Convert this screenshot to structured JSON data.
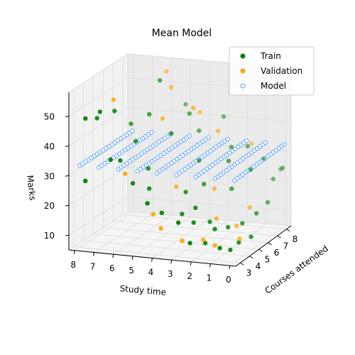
{
  "chart_data": {
    "type": "scatter3d",
    "title": "Mean Model",
    "xlabel": "Study time",
    "ylabel": "Courses attended",
    "zlabel": "Marks",
    "x_ticks": [
      0,
      1,
      2,
      3,
      4,
      5,
      6,
      7,
      8
    ],
    "y_ticks": [
      3,
      4,
      5,
      6,
      7,
      8
    ],
    "z_ticks": [
      10,
      20,
      30,
      40,
      50
    ],
    "xlim": [
      -0.3,
      8.3
    ],
    "ylim": [
      2.5,
      8.5
    ],
    "zlim": [
      5,
      58
    ],
    "legend": {
      "position": "top-right",
      "entries": [
        "Train",
        "Validation",
        "Model"
      ]
    },
    "colors": {
      "train": "#008000",
      "validation": "#ffa500",
      "model": "#5fa8ff"
    },
    "series": [
      {
        "name": "Train",
        "points": [
          [
            7.8,
            3.2,
            48
          ],
          [
            7.5,
            3.8,
            47
          ],
          [
            7.2,
            3.5,
            50
          ],
          [
            6.8,
            4.2,
            49
          ],
          [
            5.6,
            6.5,
            55
          ],
          [
            6.5,
            3.2,
            35
          ],
          [
            6.2,
            3.6,
            34
          ],
          [
            7.6,
            2.8,
            28
          ],
          [
            5.5,
            3.5,
            27
          ],
          [
            4.5,
            3.0,
            22
          ],
          [
            4.0,
            3.5,
            18
          ],
          [
            3.2,
            4.0,
            17
          ],
          [
            3.0,
            3.2,
            16
          ],
          [
            2.5,
            3.8,
            15
          ],
          [
            2.0,
            4.5,
            14
          ],
          [
            1.5,
            4.0,
            13
          ],
          [
            1.2,
            4.8,
            12
          ],
          [
            0.8,
            5.5,
            12
          ],
          [
            0.4,
            6.2,
            14
          ],
          [
            0.2,
            7.0,
            16
          ],
          [
            1.0,
            3.5,
            8
          ],
          [
            0.6,
            3.8,
            7
          ],
          [
            0.5,
            4.5,
            8
          ],
          [
            0.1,
            5.0,
            9
          ],
          [
            2.3,
            3.0,
            10
          ],
          [
            1.8,
            3.6,
            9
          ],
          [
            3.5,
            5.0,
            22
          ],
          [
            2.8,
            5.5,
            24
          ],
          [
            2.0,
            6.5,
            30
          ],
          [
            1.5,
            7.5,
            33
          ],
          [
            3.8,
            7.0,
            38
          ],
          [
            4.5,
            5.5,
            40
          ],
          [
            3.0,
            8.0,
            41
          ],
          [
            5.0,
            8.0,
            44
          ],
          [
            4.2,
            6.8,
            44
          ],
          [
            0.9,
            8.0,
            28
          ],
          [
            0.3,
            7.8,
            22
          ],
          [
            1.6,
            6.0,
            22
          ],
          [
            2.6,
            4.2,
            19
          ],
          [
            5.2,
            4.5,
            30
          ],
          [
            6.0,
            4.8,
            38
          ],
          [
            4.8,
            3.8,
            25
          ],
          [
            3.4,
            6.2,
            30
          ],
          [
            2.2,
            7.2,
            33
          ],
          [
            1.0,
            6.8,
            27
          ],
          [
            0.0,
            8.2,
            25
          ],
          [
            0.2,
            8.4,
            24
          ],
          [
            6.6,
            5.5,
            42
          ],
          [
            5.8,
            5.8,
            45
          ]
        ]
      },
      {
        "name": "Validation",
        "points": [
          [
            7.0,
            4.5,
            52
          ],
          [
            5.5,
            7.0,
            57
          ],
          [
            5.0,
            6.5,
            53
          ],
          [
            4.7,
            5.0,
            46
          ],
          [
            3.6,
            6.0,
            48
          ],
          [
            4.3,
            3.2,
            18
          ],
          [
            3.8,
            3.0,
            14
          ],
          [
            2.8,
            3.2,
            10
          ],
          [
            2.1,
            4.0,
            9
          ],
          [
            1.4,
            3.8,
            8
          ],
          [
            0.7,
            5.0,
            8
          ],
          [
            1.1,
            5.5,
            11
          ],
          [
            1.9,
            5.0,
            14
          ],
          [
            0.9,
            6.5,
            15
          ],
          [
            2.7,
            6.8,
            39
          ],
          [
            1.3,
            7.5,
            34
          ],
          [
            3.9,
            4.8,
            24
          ],
          [
            2.4,
            5.8,
            22
          ],
          [
            5.9,
            3.5,
            30
          ],
          [
            4.0,
            7.5,
            43
          ]
        ]
      },
      {
        "name": "Model",
        "mean_mark": 32.5,
        "rows_x": [
          0,
          1,
          2,
          3,
          4,
          5,
          6,
          7,
          8
        ],
        "cols_y": [
          3.0,
          3.3,
          3.6,
          3.9,
          4.2,
          4.5,
          4.8,
          5.1,
          5.4,
          5.7,
          6.0,
          6.3,
          6.6,
          6.9,
          7.2,
          7.5,
          7.8,
          8.1,
          8.4
        ]
      }
    ]
  }
}
